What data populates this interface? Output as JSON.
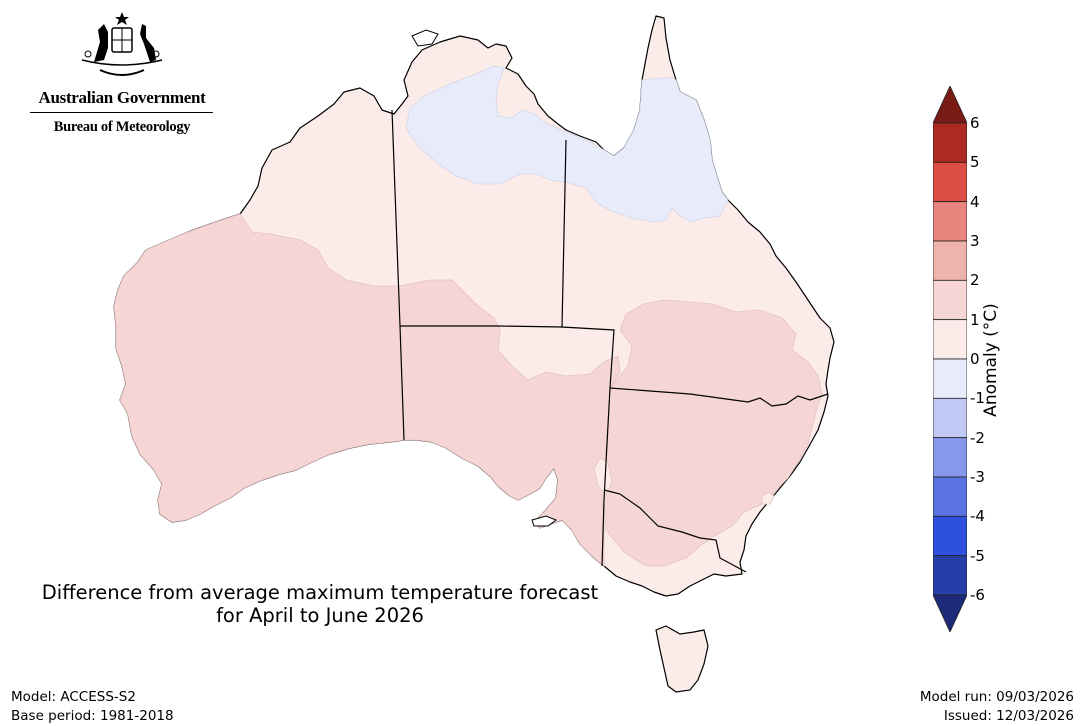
{
  "logo": {
    "crest_icon": "coat-of-arms-icon",
    "line1": "Australian Government",
    "line2": "Bureau of Meteorology"
  },
  "title": {
    "line1": "Difference from average maximum temperature forecast",
    "line2": "for April to June 2026"
  },
  "footer": {
    "model": "Model: ACCESS-S2",
    "base_period": "Base period: 1981-2018",
    "model_run": "Model run: 09/03/2026",
    "issued": "Issued: 12/03/2026"
  },
  "colorbar": {
    "title": "Anomaly (°C)",
    "ticks": [
      "6",
      "5",
      "4",
      "3",
      "2",
      "1",
      "0",
      "-1",
      "-2",
      "-3",
      "-4",
      "-5",
      "-6"
    ],
    "bins": [
      {
        "range": "> 6",
        "color": "#7a1c16"
      },
      {
        "range": "5 to 6",
        "color": "#ad2a22"
      },
      {
        "range": "4 to 5",
        "color": "#dc4d43"
      },
      {
        "range": "3 to 4",
        "color": "#e8857e"
      },
      {
        "range": "2 to 3",
        "color": "#efb3ae"
      },
      {
        "range": "1 to 2",
        "color": "#f5d6d5"
      },
      {
        "range": "0 to 1",
        "color": "#fbebe9"
      },
      {
        "range": "-1 to 0",
        "color": "#e8ebfa"
      },
      {
        "range": "-2 to -1",
        "color": "#c0c8f3"
      },
      {
        "range": "-3 to -2",
        "color": "#8797ea"
      },
      {
        "range": "-4 to -3",
        "color": "#5b72e2"
      },
      {
        "range": "-5 to -4",
        "color": "#2f50df"
      },
      {
        "range": "-6 to -5",
        "color": "#273ea9"
      },
      {
        "range": "< -6",
        "color": "#1c2a78"
      }
    ]
  },
  "map": {
    "regions": [
      {
        "name": "Top End & Gulf (NT/QLD north)",
        "anomaly_class": "-1 to 0"
      },
      {
        "name": "Cape York tip",
        "anomaly_class": "0 to 1"
      },
      {
        "name": "Kimberley / NT interior / central QLD",
        "anomaly_class": "0 to 1"
      },
      {
        "name": "Western Australia (south & central)",
        "anomaly_class": "1 to 2"
      },
      {
        "name": "South Australia (most)",
        "anomaly_class": "1 to 2"
      },
      {
        "name": "Southern QLD / NSW inland",
        "anomaly_class": "1 to 2"
      },
      {
        "name": "Northern Victoria",
        "anomaly_class": "1 to 2"
      },
      {
        "name": "Southern Victoria coast",
        "anomaly_class": "0 to 1"
      },
      {
        "name": "Tasmania",
        "anomaly_class": "0 to 1"
      }
    ]
  }
}
